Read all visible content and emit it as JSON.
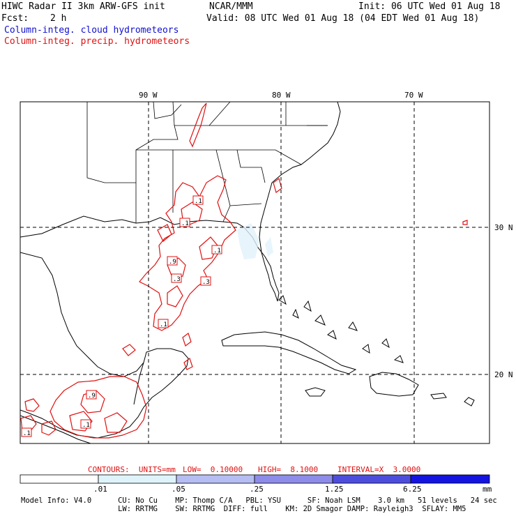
{
  "header": {
    "title_left": "HIWC Radar II 3km ARW-GFS init",
    "org": "NCAR/MMM",
    "init": "Init: 06 UTC Wed 01 Aug 18",
    "fcst_label": "Fcst:",
    "fcst_value": "2 h",
    "valid": "Valid: 08 UTC Wed 01 Aug 18 (04 EDT Wed 01 Aug 18)",
    "field_cloud": "Column-integ. cloud hydrometeors",
    "field_precip": "Column-integ. precip. hydrometeors"
  },
  "map": {
    "lon_labels": [
      "90 W",
      "80 W",
      "70 W"
    ],
    "lat_labels": [
      "30 N",
      "20 N"
    ],
    "contour_labels": [
      ".1",
      ".1",
      ".1",
      ".9",
      ".3",
      ".3",
      ".1",
      ".9",
      ".1",
      ".1"
    ]
  },
  "contours": {
    "units_label": "CONTOURS:  UNITS=mm",
    "low": "LOW=  0.10000",
    "high": "HIGH=  8.1000",
    "interval": "INTERVAL=X  3.0000"
  },
  "colorbar": {
    "labels": [
      ".01",
      ".05",
      ".25",
      "1.25",
      "6.25"
    ],
    "unit": "mm",
    "colors": [
      "#ffffff",
      "#dff3fb",
      "#b6bdf2",
      "#8d8ce9",
      "#4d4ddd",
      "#1414e0"
    ]
  },
  "model_info": {
    "line1": "Model Info: V4.0      CU: No Cu    MP: Thomp C/A   PBL: YSU      SF: Noah LSM    3.0 km   51 levels   24 sec",
    "line2": "                      LW: RRTMG    SW: RRTMG  DIFF: full    KM: 2D Smagor DAMP: Rayleigh3  SFLAY: MM5"
  }
}
